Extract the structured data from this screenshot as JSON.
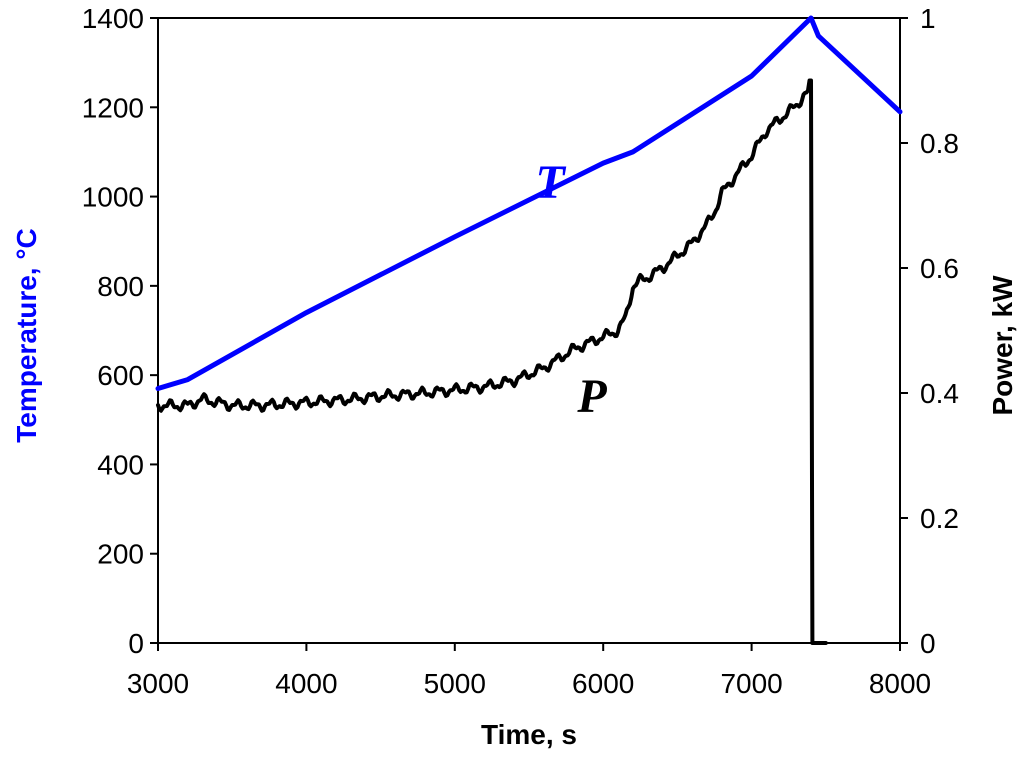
{
  "chart_data": {
    "type": "line",
    "xlabel": "Time, s",
    "ylabel_left": "Temperature, °C",
    "ylabel_right": "Power, kW",
    "xlim": [
      3000,
      8000
    ],
    "ylim_left": [
      0,
      1400
    ],
    "ylim_right": [
      0,
      1
    ],
    "x_ticks": [
      3000,
      4000,
      5000,
      6000,
      7000,
      8000
    ],
    "y_left_ticks": [
      0,
      200,
      400,
      600,
      800,
      1000,
      1200,
      1400
    ],
    "y_right_ticks": [
      "0",
      "0.2",
      "0.4",
      "0.6",
      "0.8",
      "1"
    ],
    "y_right_tick_values": [
      0,
      0.2,
      0.4,
      0.6,
      0.8,
      1
    ],
    "grid": false,
    "series": [
      {
        "name": "T",
        "axis": "left",
        "color": "#0000ff",
        "x": [
          3000,
          3200,
          4000,
          5000,
          6000,
          6200,
          7000,
          7400,
          7450,
          8000
        ],
        "y": [
          570,
          590,
          740,
          910,
          1075,
          1100,
          1270,
          1400,
          1360,
          1190
        ]
      },
      {
        "name": "P",
        "axis": "right",
        "color": "#000000",
        "x": [
          3000,
          3200,
          3300,
          3500,
          3700,
          4000,
          4300,
          4500,
          4800,
          5000,
          5200,
          5400,
          5500,
          5600,
          5700,
          5800,
          5900,
          6000,
          6100,
          6150,
          6200,
          6250,
          6300,
          6400,
          6500,
          6600,
          6700,
          6750,
          6800,
          6900,
          7000,
          7050,
          7100,
          7200,
          7300,
          7350,
          7380,
          7390,
          7400,
          7410,
          7500
        ],
        "y": [
          0.38,
          0.38,
          0.39,
          0.38,
          0.38,
          0.385,
          0.39,
          0.395,
          0.4,
          0.405,
          0.41,
          0.42,
          0.43,
          0.44,
          0.455,
          0.47,
          0.48,
          0.49,
          0.5,
          0.52,
          0.57,
          0.58,
          0.585,
          0.6,
          0.62,
          0.64,
          0.67,
          0.69,
          0.72,
          0.75,
          0.78,
          0.8,
          0.82,
          0.84,
          0.86,
          0.875,
          0.88,
          0.9,
          0.9,
          0.0,
          0.0
        ]
      }
    ],
    "annotations": [
      {
        "text": "T",
        "color": "#0000ff",
        "series": "T"
      },
      {
        "text": "P",
        "color": "#000000",
        "series": "P"
      }
    ]
  }
}
